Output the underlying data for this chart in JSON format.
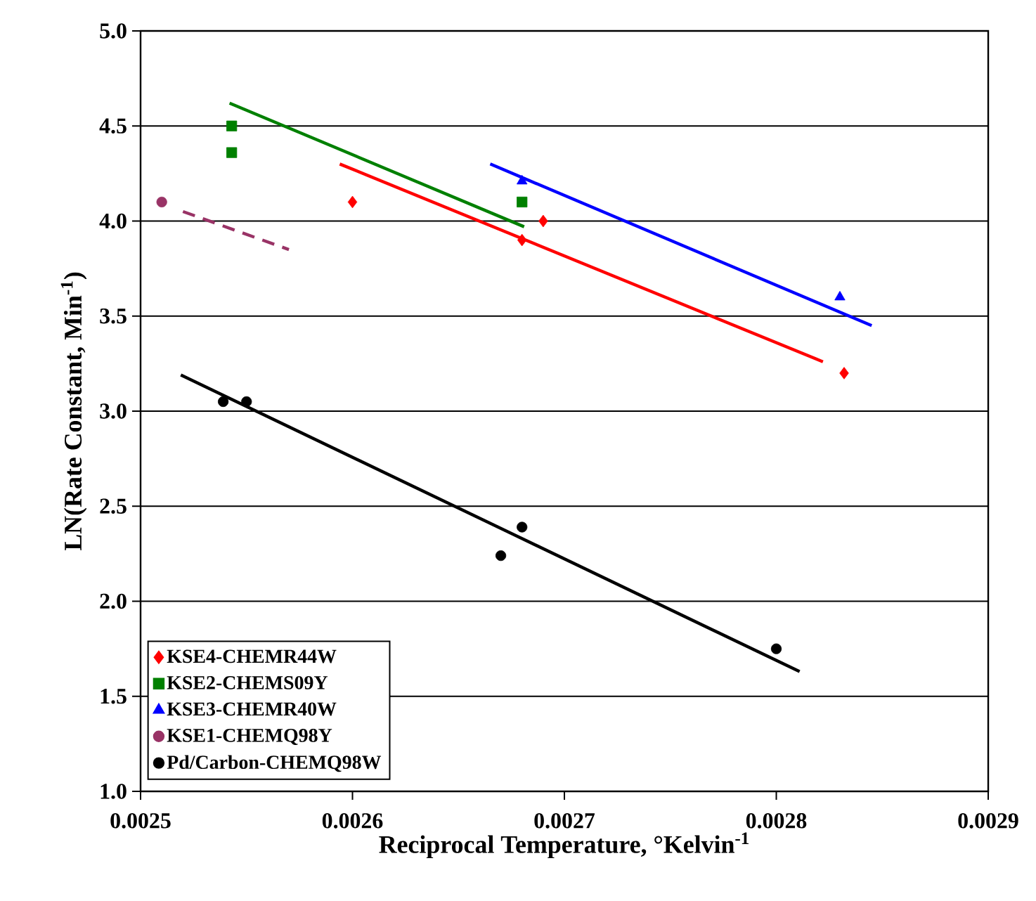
{
  "chart_data": {
    "type": "scatter",
    "xlabel": "Reciprocal Temperature, °Kelvin$^{-1}$",
    "ylabel": "LN(Rate Constant, Min$^{-1}$)",
    "xlim": [
      0.0025,
      0.0029
    ],
    "xticks": [
      0.0025,
      0.0026,
      0.0027,
      0.0028,
      0.0029
    ],
    "ylim": [
      1,
      5
    ],
    "yticks": [
      {
        "value": 1,
        "label": "1.0"
      },
      {
        "value": 1.5,
        "label": "1.5"
      },
      {
        "value": 2,
        "label": "2.0"
      },
      {
        "value": 2.5,
        "label": "2.5"
      },
      {
        "value": 3,
        "label": "3.0"
      },
      {
        "value": 3.5,
        "label": "3.5"
      },
      {
        "value": 4,
        "label": "4.0"
      },
      {
        "value": 4.5,
        "label": "4.5"
      },
      {
        "value": 5,
        "label": "5.0"
      }
    ],
    "grid": "y",
    "legend": "bottom left",
    "series": [
      {
        "name": "KSE4-CHEMR44W",
        "marker": "diamond",
        "color": "#ff0000",
        "x": [
          0.0026,
          0.00268,
          0.00269,
          0.002832
        ],
        "values": [
          4.1,
          3.9,
          4.0,
          3.2
        ]
      },
      {
        "name": "KSE2-CHEMS09Y",
        "marker": "square",
        "color": "#008000",
        "x": [
          0.002543,
          0.002543,
          0.00268
        ],
        "values": [
          4.5,
          4.36,
          4.1
        ]
      },
      {
        "name": "KSE3-CHEMR40W",
        "marker": "triangle",
        "color": "#0000ff",
        "x": [
          0.00268,
          0.00283
        ],
        "values": [
          4.21,
          3.6
        ]
      },
      {
        "name": "KSE1-CHEMQ98Y",
        "marker": "circle",
        "color": "#993366",
        "x": [
          0.00251
        ],
        "values": [
          4.1
        ]
      },
      {
        "name": "Pd/Carbon-CHEMQ98W",
        "marker": "circle",
        "color": "#000000",
        "x": [
          0.002539,
          0.00255,
          0.00267,
          0.00268,
          0.0028
        ],
        "values": [
          3.05,
          3.05,
          2.24,
          2.39,
          1.75
        ]
      },
      {
        "type": "line",
        "line_style": "solid",
        "color": "#ff0000",
        "x": [
          0.002594,
          0.002822
        ],
        "values": [
          4.3,
          3.26
        ]
      },
      {
        "type": "line",
        "line_style": "solid",
        "color": "#008000",
        "x": [
          0.002542,
          0.002681
        ],
        "values": [
          4.62,
          3.97
        ]
      },
      {
        "type": "line",
        "line_style": "solid",
        "color": "#0000ff",
        "x": [
          0.002665,
          0.002845
        ],
        "values": [
          4.3,
          3.45
        ]
      },
      {
        "type": "line",
        "line_style": "dashed",
        "color": "#993366",
        "x": [
          0.00252,
          0.00257
        ],
        "values": [
          4.05,
          3.85
        ]
      },
      {
        "type": "line",
        "line_style": "solid",
        "color": "#000000",
        "x": [
          0.002519,
          0.002811
        ],
        "values": [
          3.19,
          1.63
        ]
      }
    ]
  }
}
